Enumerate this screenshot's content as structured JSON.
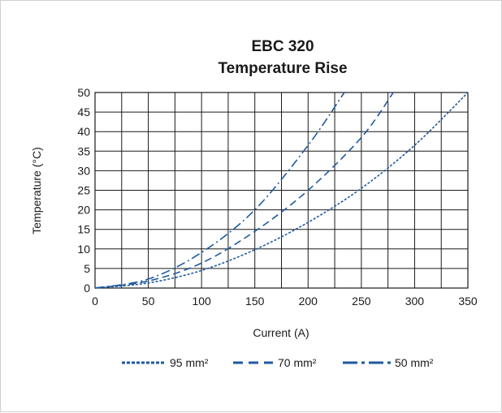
{
  "colors": {
    "series": "#1e5aa0",
    "grid": "#1a1a1a",
    "text": "#1a1a1a",
    "frame": "#cfcfcf"
  },
  "chart_data": {
    "type": "line",
    "title": [
      "EBC 320",
      "Temperature Rise"
    ],
    "xlabel": "Current (A)",
    "ylabel": "Temperature (°C)",
    "xlim": [
      0,
      350
    ],
    "ylim": [
      0,
      50
    ],
    "xticks": [
      0,
      50,
      100,
      150,
      200,
      250,
      300,
      350
    ],
    "yticks": [
      0,
      5,
      10,
      15,
      20,
      25,
      30,
      35,
      40,
      45,
      50
    ],
    "grid": true,
    "legend_position": "bottom",
    "series": [
      {
        "name": "95 mm²",
        "dash": "dotted",
        "x": [
          0,
          50,
          100,
          150,
          200,
          250,
          300,
          350
        ],
        "y": [
          0,
          1.3,
          4.5,
          9.8,
          16.8,
          25.5,
          36.5,
          50
        ]
      },
      {
        "name": "70 mm²",
        "dash": "dashed",
        "x": [
          0,
          50,
          100,
          150,
          200,
          250,
          280
        ],
        "y": [
          0,
          1.8,
          6.4,
          14.5,
          25,
          38.5,
          50
        ]
      },
      {
        "name": "50 mm²",
        "dash": "dash-dot",
        "x": [
          0,
          50,
          100,
          150,
          200,
          234
        ],
        "y": [
          0,
          2.3,
          9.1,
          20,
          36.5,
          50
        ]
      }
    ]
  }
}
